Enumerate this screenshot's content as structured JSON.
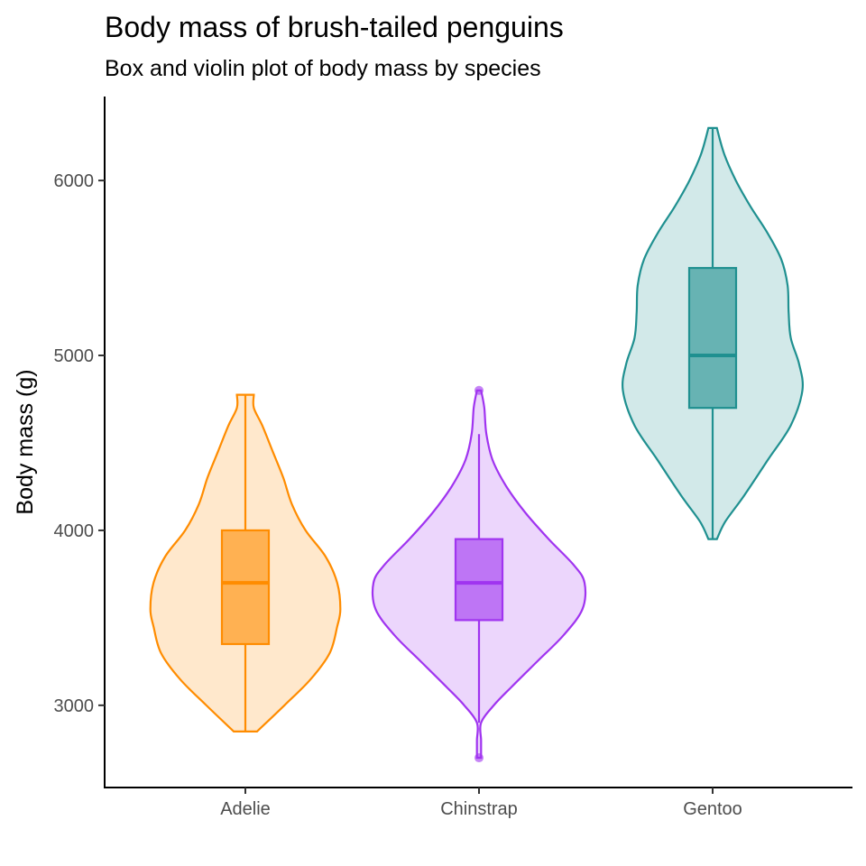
{
  "chart_data": {
    "type": "violin-box",
    "title": "Body mass of brush-tailed penguins",
    "subtitle": "Box and violin plot of body mass by species",
    "xlabel": "",
    "ylabel": "Body mass (g)",
    "ylim": [
      2530,
      6480
    ],
    "yticks": [
      3000,
      4000,
      5000,
      6000
    ],
    "ytick_labels": [
      "3000",
      "4000",
      "5000",
      "6000"
    ],
    "grid": false,
    "legend": "none",
    "categories": [
      "Adelie",
      "Chinstrap",
      "Gentoo"
    ],
    "series": [
      {
        "category": "Adelie",
        "color": "#ff8c00",
        "box": {
          "whisker_low": 2850,
          "q1": 3350,
          "median": 3700,
          "q3": 4000,
          "whisker_high": 4775
        },
        "outliers": [],
        "density": [
          [
            2850,
            0.11
          ],
          [
            3000,
            0.37
          ],
          [
            3150,
            0.62
          ],
          [
            3300,
            0.8
          ],
          [
            3450,
            0.87
          ],
          [
            3550,
            0.9
          ],
          [
            3700,
            0.87
          ],
          [
            3850,
            0.76
          ],
          [
            4000,
            0.57
          ],
          [
            4150,
            0.44
          ],
          [
            4300,
            0.36
          ],
          [
            4450,
            0.26
          ],
          [
            4600,
            0.16
          ],
          [
            4700,
            0.08
          ],
          [
            4775,
            0.08
          ]
        ]
      },
      {
        "category": "Chinstrap",
        "color": "#a034f0",
        "box": {
          "whisker_low": 2900,
          "q1": 3487,
          "median": 3700,
          "q3": 3950,
          "whisker_high": 4550
        },
        "outliers": [
          2700,
          4800
        ],
        "density": [
          [
            2700,
            0.02
          ],
          [
            2800,
            0.02
          ],
          [
            2900,
            0.02
          ],
          [
            3000,
            0.14
          ],
          [
            3100,
            0.3
          ],
          [
            3250,
            0.55
          ],
          [
            3400,
            0.8
          ],
          [
            3550,
            0.98
          ],
          [
            3700,
            1.0
          ],
          [
            3800,
            0.9
          ],
          [
            3950,
            0.66
          ],
          [
            4100,
            0.44
          ],
          [
            4250,
            0.26
          ],
          [
            4400,
            0.13
          ],
          [
            4550,
            0.07
          ],
          [
            4700,
            0.05
          ],
          [
            4800,
            0.02
          ]
        ]
      },
      {
        "category": "Gentoo",
        "color": "#1f9090",
        "box": {
          "whisker_low": 3950,
          "q1": 4700,
          "median": 5000,
          "q3": 5500,
          "whisker_high": 6300
        },
        "outliers": [],
        "density": [
          [
            3950,
            0.04
          ],
          [
            4050,
            0.12
          ],
          [
            4200,
            0.3
          ],
          [
            4400,
            0.52
          ],
          [
            4600,
            0.74
          ],
          [
            4800,
            0.85
          ],
          [
            4950,
            0.82
          ],
          [
            5100,
            0.74
          ],
          [
            5250,
            0.72
          ],
          [
            5400,
            0.71
          ],
          [
            5550,
            0.65
          ],
          [
            5700,
            0.52
          ],
          [
            5850,
            0.36
          ],
          [
            6000,
            0.22
          ],
          [
            6150,
            0.11
          ],
          [
            6300,
            0.04
          ]
        ]
      }
    ]
  }
}
